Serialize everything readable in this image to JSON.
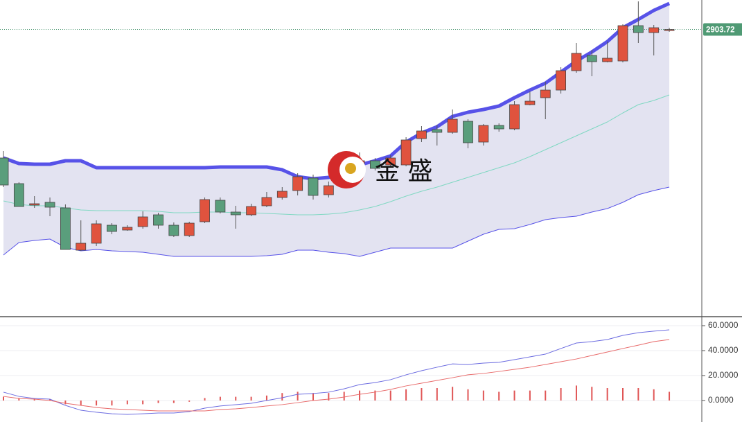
{
  "chart_data": [
    {
      "type": "candlestick",
      "categories": [
        null,
        null,
        null,
        null,
        null,
        null,
        null,
        null,
        null,
        null,
        null,
        null,
        null,
        null,
        null,
        null,
        null,
        null,
        null,
        null,
        null,
        null,
        null,
        null,
        null,
        null,
        null,
        null,
        null,
        null,
        null,
        null,
        null,
        null,
        null,
        null,
        null,
        null,
        null,
        null,
        null,
        null,
        null,
        null
      ],
      "open": [
        2811,
        2792.5,
        2777,
        2779,
        2775,
        2744.5,
        2749.5,
        2762.5,
        2759,
        2761.5,
        2770,
        2762.5,
        2755,
        2765,
        2780.5,
        2772,
        2770,
        2776.5,
        2782.5,
        2787.5,
        2796.5,
        2784.5,
        2796,
        2801,
        2809,
        2806,
        2806,
        2825,
        2831.5,
        2829.5,
        2837.5,
        2822.5,
        2834.5,
        2832,
        2849.5,
        2854.5,
        2860,
        2874,
        2885,
        2880.5,
        2881,
        2906.5,
        2901.5,
        2903.72
      ],
      "high": [
        2816,
        2793.5,
        2783.5,
        2782.5,
        2777.5,
        2766,
        2766,
        2764,
        2762.5,
        2772.5,
        2771.5,
        2764.5,
        2765,
        2782.5,
        2782.5,
        2776.5,
        2778,
        2786.5,
        2790,
        2800,
        2799,
        2794,
        2805,
        2815,
        2811,
        2813,
        2826,
        2834,
        2835,
        2846,
        2839,
        2835.5,
        2836,
        2852,
        2859,
        2866,
        2876.5,
        2894,
        2889,
        2895,
        2907.5,
        2924,
        2907,
        2905
      ],
      "low": [
        2790,
        2776,
        2775,
        2769,
        2745,
        2744,
        2747.5,
        2756,
        2758.5,
        2760,
        2760,
        2754,
        2754,
        2764,
        2771,
        2760,
        2769,
        2775.5,
        2781,
        2784,
        2781,
        2782.5,
        2794,
        2800,
        2802,
        2805,
        2805,
        2822.5,
        2820,
        2828.5,
        2818,
        2820,
        2830,
        2831,
        2849,
        2839,
        2857.5,
        2872.5,
        2870,
        2880,
        2880,
        2894,
        2885,
        2902
      ],
      "close": [
        2791.5,
        2776,
        2778,
        2775.5,
        2745,
        2749.5,
        2763.5,
        2758,
        2761,
        2768.5,
        2762.5,
        2755,
        2764,
        2781,
        2772,
        2770,
        2776,
        2782.5,
        2787,
        2797.5,
        2784,
        2791,
        2802.5,
        2809,
        2803.5,
        2811,
        2824,
        2830.5,
        2829.5,
        2839,
        2822,
        2834.5,
        2832,
        2849.5,
        2852,
        2860,
        2874,
        2886.5,
        2880.5,
        2883,
        2906.5,
        2901.5,
        2905,
        2903.72
      ],
      "up_color": "#e0533e",
      "down_color": "#5a9e7c",
      "ylim": [
        2697,
        2925
      ],
      "last_price": 2903.72,
      "last_price_color": "#4f9a74",
      "band_fill": "#e3e3f1",
      "overlays": [
        {
          "color": "#5752e8",
          "values": [
            2811,
            2807,
            2806.5,
            2806.5,
            2809,
            2809,
            2804,
            2804,
            2804,
            2804,
            2804,
            2804,
            2804,
            2804,
            2804.5,
            2804.5,
            2804.5,
            2804.5,
            2802.5,
            2797.5,
            2796,
            2797,
            2800,
            2806,
            2809,
            2812.5,
            2822.5,
            2829,
            2833.5,
            2841,
            2844,
            2846,
            2848.5,
            2854.5,
            2860,
            2865,
            2873,
            2881,
            2887.5,
            2895,
            2905,
            2911,
            2917.5,
            2922.5
          ]
        },
        {
          "color": "#7fd8c2",
          "values": [
            2780,
            2777.5,
            2776.5,
            2776.5,
            2775,
            2773.5,
            2773,
            2773,
            2773,
            2773,
            2772.5,
            2771.5,
            2771.5,
            2772,
            2772,
            2771.5,
            2771.5,
            2771,
            2770.5,
            2770,
            2770,
            2770.5,
            2771.5,
            2773.5,
            2776,
            2779.5,
            2783.5,
            2787,
            2790,
            2793.5,
            2797,
            2800.5,
            2804,
            2807.5,
            2812,
            2817,
            2822,
            2827,
            2832,
            2837,
            2843.5,
            2849.5,
            2852.5,
            2856.5
          ]
        },
        {
          "color": "#5752e8",
          "values": [
            2741,
            2750,
            2751.5,
            2752.5,
            2746.5,
            2744,
            2745,
            2744,
            2743.5,
            2743,
            2741.5,
            2740,
            2740,
            2740,
            2740,
            2740,
            2740,
            2740.5,
            2741.5,
            2744.5,
            2744.5,
            2743,
            2742,
            2740,
            2743,
            2746,
            2746,
            2746,
            2746,
            2746,
            2751,
            2756,
            2759.5,
            2760,
            2763,
            2766.5,
            2768,
            2769,
            2772,
            2774.5,
            2779,
            2784.5,
            2787.5,
            2790
          ]
        }
      ],
      "watermark": "金 盛"
    },
    {
      "type": "indicator",
      "categories": [
        null,
        null,
        null,
        null,
        null,
        null,
        null,
        null,
        null,
        null,
        null,
        null,
        null,
        null,
        null,
        null,
        null,
        null,
        null,
        null,
        null,
        null,
        null,
        null,
        null,
        null,
        null,
        null,
        null,
        null,
        null,
        null,
        null,
        null,
        null,
        null,
        null,
        null,
        null,
        null,
        null,
        null,
        null,
        null
      ],
      "ylim": [
        -15,
        65
      ],
      "yticks": [
        {
          "value": 60,
          "label": "60.0000"
        },
        {
          "value": 40,
          "label": "40.0000"
        },
        {
          "value": 20,
          "label": "20.0000"
        },
        {
          "value": 0,
          "label": "0.0000"
        }
      ],
      "grid": true,
      "lines": [
        {
          "color": "#6b6be0",
          "values": [
            6.7,
            3.3,
            1.7,
            1.1,
            -3.9,
            -7.8,
            -9.4,
            -10.6,
            -11.1,
            -10.6,
            -10,
            -10,
            -8.9,
            -6.1,
            -4.4,
            -3.3,
            -2.2,
            0,
            2.2,
            5,
            5.6,
            6.7,
            9.4,
            12.8,
            14.4,
            16.7,
            20.6,
            23.9,
            26.7,
            29.4,
            28.9,
            30,
            30.6,
            32.8,
            35,
            37.2,
            41.7,
            46.1,
            47.2,
            48.9,
            52.2,
            54.4,
            55.6,
            56.7
          ]
        },
        {
          "color": "#e86a6a",
          "values": [
            3.3,
            1.7,
            1.1,
            0,
            -2.2,
            -3.9,
            -5.6,
            -6.7,
            -7.2,
            -7.8,
            -8.3,
            -8.3,
            -8.3,
            -8.3,
            -7.2,
            -6.7,
            -5.6,
            -4.4,
            -3.3,
            -1.7,
            0,
            1.1,
            2.8,
            5,
            6.7,
            8.9,
            11.7,
            13.9,
            16.1,
            18.3,
            20.6,
            21.7,
            23.3,
            25,
            26.7,
            28.9,
            31.1,
            33.3,
            36.1,
            38.9,
            41.7,
            44.4,
            47.2,
            48.9
          ]
        }
      ],
      "histogram": {
        "color": "#e05555",
        "values": [
          3,
          2,
          1,
          1,
          -3,
          -4,
          -4,
          -4,
          -3,
          -3,
          -2,
          -2,
          -1,
          2,
          3,
          3,
          3,
          4,
          6,
          7,
          6,
          6,
          7,
          8,
          8,
          8,
          9,
          10,
          10,
          11,
          9,
          8,
          7,
          8,
          8,
          8,
          10,
          12,
          11,
          10,
          10,
          10,
          9,
          7
        ]
      }
    }
  ]
}
